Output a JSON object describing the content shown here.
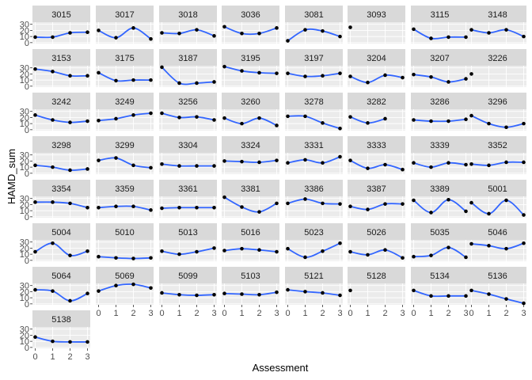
{
  "chart_data": {
    "type": "line",
    "xlabel": "Assessment",
    "ylabel": "HAMD_sum",
    "x_ticks": [
      0,
      1,
      2,
      3
    ],
    "y_ticks": [
      0,
      10,
      20,
      30
    ],
    "xlim": [
      0,
      3
    ],
    "ylim": [
      0,
      30
    ],
    "grid": "on",
    "facet_columns": 8,
    "colors": {
      "panel": "#ebebeb",
      "strip": "#d9d9d9",
      "gridline": "#ffffff",
      "line": "#3366ff",
      "point": "#000000",
      "tick_text": "#4d4d4d"
    },
    "panels": [
      {
        "label": "3015",
        "values": [
          9,
          9,
          16,
          17
        ]
      },
      {
        "label": "3017",
        "values": [
          20,
          8,
          24,
          6
        ]
      },
      {
        "label": "3018",
        "values": [
          16,
          15,
          21,
          11
        ]
      },
      {
        "label": "3036",
        "values": [
          26,
          15,
          15,
          24
        ]
      },
      {
        "label": "3081",
        "values": [
          3,
          21,
          19,
          10
        ]
      },
      {
        "label": "3093",
        "values": [
          25,
          null,
          null,
          null
        ]
      },
      {
        "label": "3115",
        "values": [
          22,
          7,
          9,
          9
        ]
      },
      {
        "label": "3148",
        "values": [
          21,
          16,
          21,
          10
        ]
      },
      {
        "label": "3153",
        "values": [
          28,
          24,
          17,
          17
        ]
      },
      {
        "label": "3175",
        "values": [
          22,
          9,
          10,
          10
        ]
      },
      {
        "label": "3187",
        "values": [
          31,
          5,
          5,
          7
        ]
      },
      {
        "label": "3195",
        "values": [
          32,
          25,
          22,
          21
        ]
      },
      {
        "label": "3197",
        "values": [
          21,
          16,
          17,
          21
        ]
      },
      {
        "label": "3204",
        "values": [
          16,
          6,
          18,
          14
        ]
      },
      {
        "label": "3207",
        "values": [
          19,
          15,
          7,
          12
        ]
      },
      {
        "label": "3226",
        "values": [
          20,
          null,
          null,
          null
        ]
      },
      {
        "label": "3242",
        "values": [
          24,
          16,
          12,
          14
        ]
      },
      {
        "label": "3249",
        "values": [
          15,
          18,
          24,
          27
        ]
      },
      {
        "label": "3256",
        "values": [
          27,
          20,
          21,
          16
        ]
      },
      {
        "label": "3260",
        "values": [
          19,
          10,
          19,
          7
        ]
      },
      {
        "label": "3278",
        "values": [
          22,
          22,
          11,
          2
        ]
      },
      {
        "label": "3282",
        "values": [
          21,
          11,
          18,
          null
        ]
      },
      {
        "label": "3286",
        "values": [
          16,
          14,
          14,
          17
        ]
      },
      {
        "label": "3296",
        "values": [
          23,
          10,
          4,
          10
        ]
      },
      {
        "label": "3298",
        "values": [
          13,
          10,
          5,
          7
        ]
      },
      {
        "label": "3299",
        "values": [
          21,
          25,
          13,
          9
        ]
      },
      {
        "label": "3304",
        "values": [
          15,
          12,
          12,
          12
        ]
      },
      {
        "label": "3324",
        "values": [
          20,
          19,
          18,
          21
        ]
      },
      {
        "label": "3331",
        "values": [
          17,
          22,
          17,
          27
        ]
      },
      {
        "label": "3333",
        "values": [
          21,
          8,
          14,
          6
        ]
      },
      {
        "label": "3339",
        "values": [
          17,
          10,
          17,
          14
        ]
      },
      {
        "label": "3352",
        "values": [
          15,
          13,
          18,
          18
        ]
      },
      {
        "label": "3354",
        "values": [
          24,
          24,
          22,
          15
        ]
      },
      {
        "label": "3359",
        "values": [
          15,
          17,
          17,
          11
        ]
      },
      {
        "label": "3361",
        "values": [
          14,
          15,
          15,
          15
        ]
      },
      {
        "label": "3381",
        "values": [
          32,
          16,
          8,
          22
        ]
      },
      {
        "label": "3386",
        "values": [
          22,
          29,
          22,
          21
        ]
      },
      {
        "label": "3387",
        "values": [
          17,
          12,
          21,
          21
        ]
      },
      {
        "label": "3389",
        "values": [
          27,
          7,
          28,
          9
        ]
      },
      {
        "label": "5001",
        "values": [
          23,
          5,
          27,
          3
        ]
      },
      {
        "label": "5004",
        "values": [
          14,
          28,
          8,
          15
        ]
      },
      {
        "label": "5010",
        "values": [
          6,
          4,
          3,
          4
        ]
      },
      {
        "label": "5013",
        "values": [
          15,
          10,
          14,
          20
        ]
      },
      {
        "label": "5016",
        "values": [
          16,
          19,
          17,
          14
        ]
      },
      {
        "label": "5023",
        "values": [
          19,
          5,
          15,
          28
        ]
      },
      {
        "label": "5026",
        "values": [
          14,
          9,
          17,
          4
        ]
      },
      {
        "label": "5035",
        "values": [
          6,
          8,
          21,
          5
        ]
      },
      {
        "label": "5046",
        "values": [
          27,
          24,
          19,
          28
        ]
      },
      {
        "label": "5064",
        "values": [
          23,
          21,
          5,
          17
        ]
      },
      {
        "label": "5069",
        "values": [
          21,
          30,
          32,
          26
        ]
      },
      {
        "label": "5099",
        "values": [
          18,
          15,
          14,
          15
        ]
      },
      {
        "label": "5103",
        "values": [
          17,
          16,
          15,
          19
        ]
      },
      {
        "label": "5121",
        "values": [
          23,
          20,
          18,
          14
        ]
      },
      {
        "label": "5128",
        "values": [
          22,
          null,
          null,
          null
        ]
      },
      {
        "label": "5134",
        "values": [
          22,
          13,
          13,
          13
        ]
      },
      {
        "label": "5136",
        "values": [
          22,
          16,
          8,
          1
        ]
      },
      {
        "label": "5138",
        "values": [
          17,
          10,
          9,
          9
        ]
      }
    ]
  }
}
